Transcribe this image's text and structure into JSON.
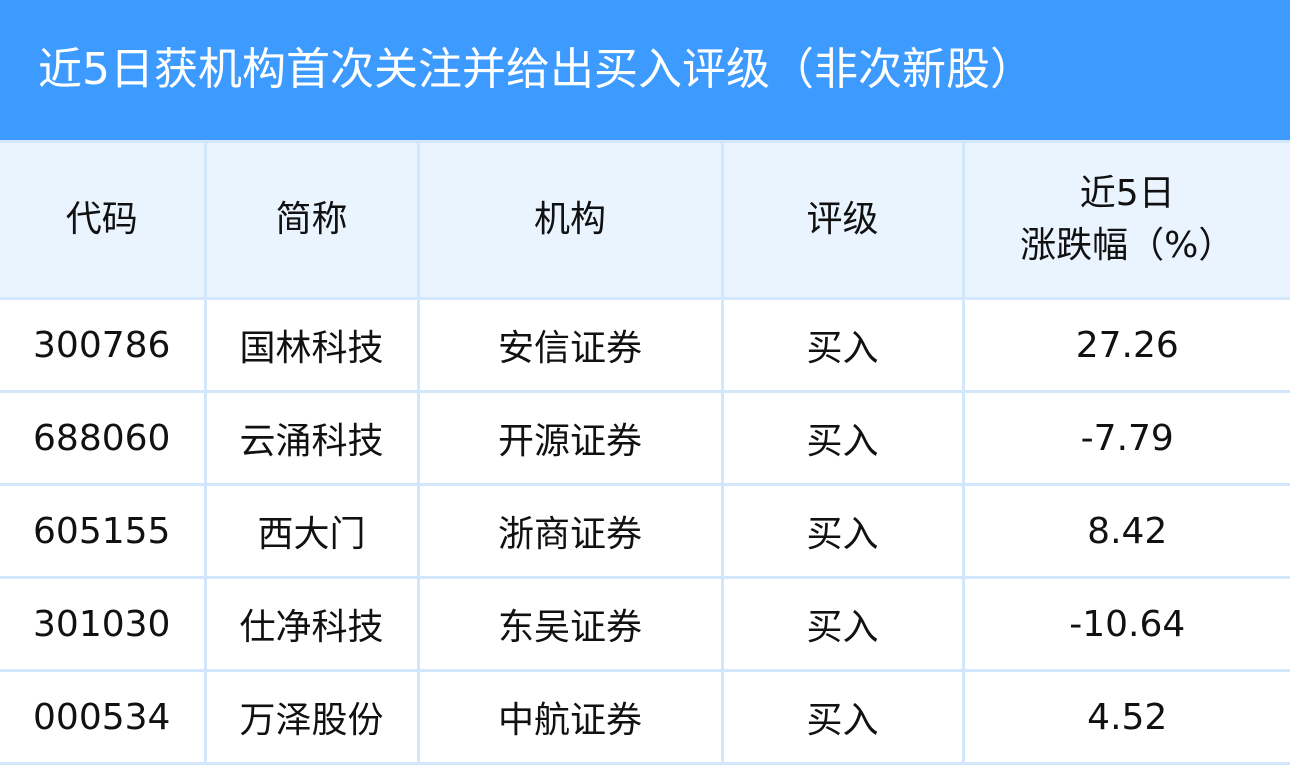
{
  "title": "近5日获机构首次关注并给出买入评级（非次新股）",
  "colors": {
    "title_bg": "#3d9bff",
    "header_bg": "#eaf4ff",
    "grid": "#d2e7fc"
  },
  "headers": [
    "代码",
    "简称",
    "机构",
    "评级",
    "近5日",
    "涨跌幅（%）"
  ],
  "rows": [
    [
      "300786",
      "国林科技",
      "安信证券",
      "买入",
      "27.26"
    ],
    [
      "688060",
      "云涌科技",
      "开源证券",
      "买入",
      "-7.79"
    ],
    [
      "605155",
      "西大门",
      "浙商证券",
      "买入",
      "8.42"
    ],
    [
      "301030",
      "仕净科技",
      "东吴证券",
      "买入",
      "-10.64"
    ],
    [
      "000534",
      "万泽股份",
      "中航证券",
      "买入",
      "4.52"
    ]
  ]
}
